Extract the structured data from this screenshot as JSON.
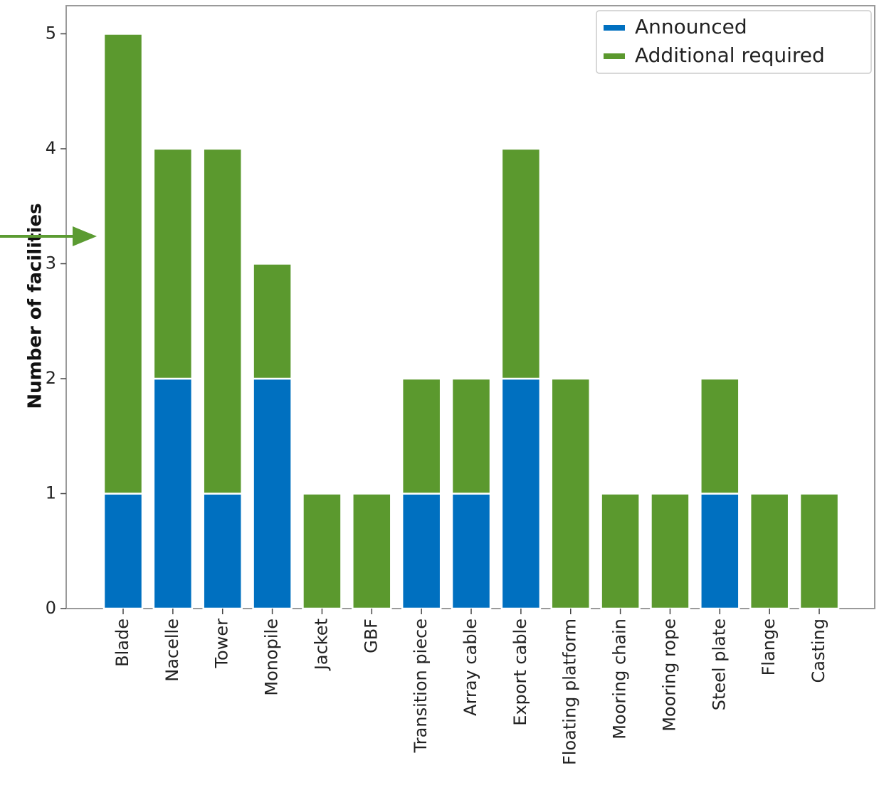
{
  "chart_data": {
    "type": "bar",
    "stacked": true,
    "categories": [
      "Blade",
      "Nacelle",
      "Tower",
      "Monopile",
      "Jacket",
      "GBF",
      "Transition piece",
      "Array cable",
      "Export cable",
      "Floating platform",
      "Mooring chain",
      "Mooring rope",
      "Steel plate",
      "Flange",
      "Casting"
    ],
    "series": [
      {
        "name": "Announced",
        "color": "#0070c0",
        "values": [
          1,
          2,
          1,
          2,
          0,
          0,
          1,
          1,
          2,
          0,
          0,
          0,
          1,
          0,
          0
        ]
      },
      {
        "name": "Additional required",
        "color": "#5b992e",
        "values": [
          4,
          2,
          3,
          1,
          1,
          1,
          1,
          1,
          2,
          2,
          1,
          1,
          1,
          1,
          1
        ]
      }
    ],
    "ylabel": "Number of facilities",
    "xlabel": "",
    "ylim": [
      0,
      5.25
    ],
    "yticks": [
      "0",
      "1",
      "2",
      "3",
      "4",
      "5"
    ],
    "legend": "top-right",
    "grid": false,
    "annotation": {
      "type": "arrow",
      "color": "#5b9b32",
      "points_to": "y-axis label"
    }
  }
}
